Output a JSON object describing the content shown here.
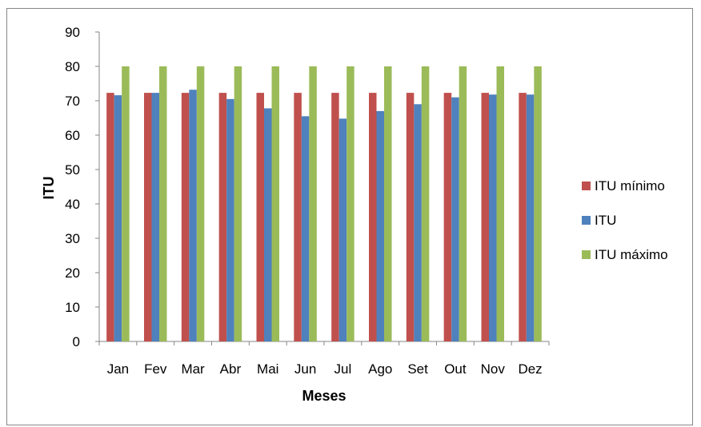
{
  "chart_data": {
    "type": "bar",
    "categories": [
      "Jan",
      "Fev",
      "Mar",
      "Abr",
      "Mai",
      "Jun",
      "Jul",
      "Ago",
      "Set",
      "Out",
      "Nov",
      "Dez"
    ],
    "series": [
      {
        "name": "ITU mínimo",
        "color": "#C0504D",
        "values": [
          72.3,
          72.3,
          72.3,
          72.3,
          72.3,
          72.3,
          72.3,
          72.3,
          72.3,
          72.3,
          72.3,
          72.3
        ]
      },
      {
        "name": "ITU",
        "color": "#4F81BD",
        "values": [
          71.6,
          72.3,
          73.2,
          70.5,
          67.8,
          65.5,
          64.8,
          67.0,
          69.0,
          71.0,
          71.8,
          71.8
        ]
      },
      {
        "name": "ITU máximo",
        "color": "#9BBB59",
        "values": [
          80,
          80,
          80,
          80,
          80,
          80,
          80,
          80,
          80,
          80,
          80,
          80
        ]
      }
    ],
    "xlabel": "Meses",
    "ylabel": "ITU",
    "ylim": [
      0,
      90
    ],
    "yticks": [
      0,
      10,
      20,
      30,
      40,
      50,
      60,
      70,
      80,
      90
    ],
    "grid": false,
    "legend_position": "right"
  }
}
